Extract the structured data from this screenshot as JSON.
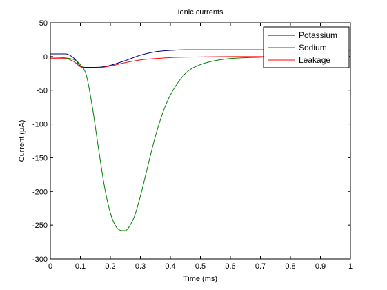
{
  "chart_data": {
    "type": "line",
    "title": "Ionic currents",
    "xlabel": "Time (ms)",
    "ylabel": "Current (μA)",
    "xlim": [
      0,
      1
    ],
    "ylim": [
      -300,
      50
    ],
    "xticks": [
      0,
      0.1,
      0.2,
      0.3,
      0.4,
      0.5,
      0.6,
      0.7,
      0.8,
      0.9,
      1
    ],
    "xtick_labels": [
      "0",
      "0.1",
      "0.2",
      "0.3",
      "0.4",
      "0.5",
      "0.6",
      "0.7",
      "0.8",
      "0.9",
      "1"
    ],
    "yticks": [
      -300,
      -250,
      -200,
      -150,
      -100,
      -50,
      0,
      50
    ],
    "ytick_labels": [
      "-300",
      "-250",
      "-200",
      "-150",
      "-100",
      "-50",
      "0",
      "50"
    ],
    "grid": false,
    "legend_position": "top-right",
    "series": [
      {
        "name": "Potassium",
        "color": "#000080",
        "x": [
          0,
          0.05,
          0.06,
          0.08,
          0.1,
          0.12,
          0.15,
          0.18,
          0.2,
          0.25,
          0.3,
          0.35,
          0.4,
          0.45,
          0.5,
          0.6,
          0.7,
          0.8,
          0.9,
          1.0
        ],
        "y": [
          4,
          4,
          3,
          -3,
          -14,
          -16,
          -16,
          -15,
          -13,
          -6,
          2,
          7,
          9,
          10,
          10,
          10,
          10,
          10,
          9.5,
          9
        ]
      },
      {
        "name": "Sodium",
        "color": "#007f00",
        "x": [
          0,
          0.05,
          0.08,
          0.1,
          0.12,
          0.14,
          0.16,
          0.18,
          0.2,
          0.22,
          0.24,
          0.25,
          0.26,
          0.28,
          0.3,
          0.32,
          0.34,
          0.36,
          0.38,
          0.4,
          0.45,
          0.5,
          0.55,
          0.6,
          0.7,
          0.8,
          0.9,
          1.0
        ],
        "y": [
          -1,
          -2,
          -5,
          -12,
          -28,
          -75,
          -135,
          -192,
          -232,
          -253,
          -258,
          -258,
          -254,
          -237,
          -207,
          -171,
          -135,
          -103,
          -77,
          -57,
          -25,
          -12,
          -6,
          -3,
          -1,
          0,
          0,
          0
        ]
      },
      {
        "name": "Leakage",
        "color": "#ff0000",
        "x": [
          0,
          0.05,
          0.08,
          0.1,
          0.12,
          0.15,
          0.2,
          0.25,
          0.3,
          0.35,
          0.4,
          0.5,
          0.6,
          0.7,
          0.8,
          0.9,
          1.0
        ],
        "y": [
          -3,
          -3,
          -8,
          -15,
          -17,
          -17,
          -14,
          -9,
          -5,
          -3,
          -1.5,
          -0.5,
          0,
          0,
          0,
          0,
          0
        ]
      }
    ]
  }
}
